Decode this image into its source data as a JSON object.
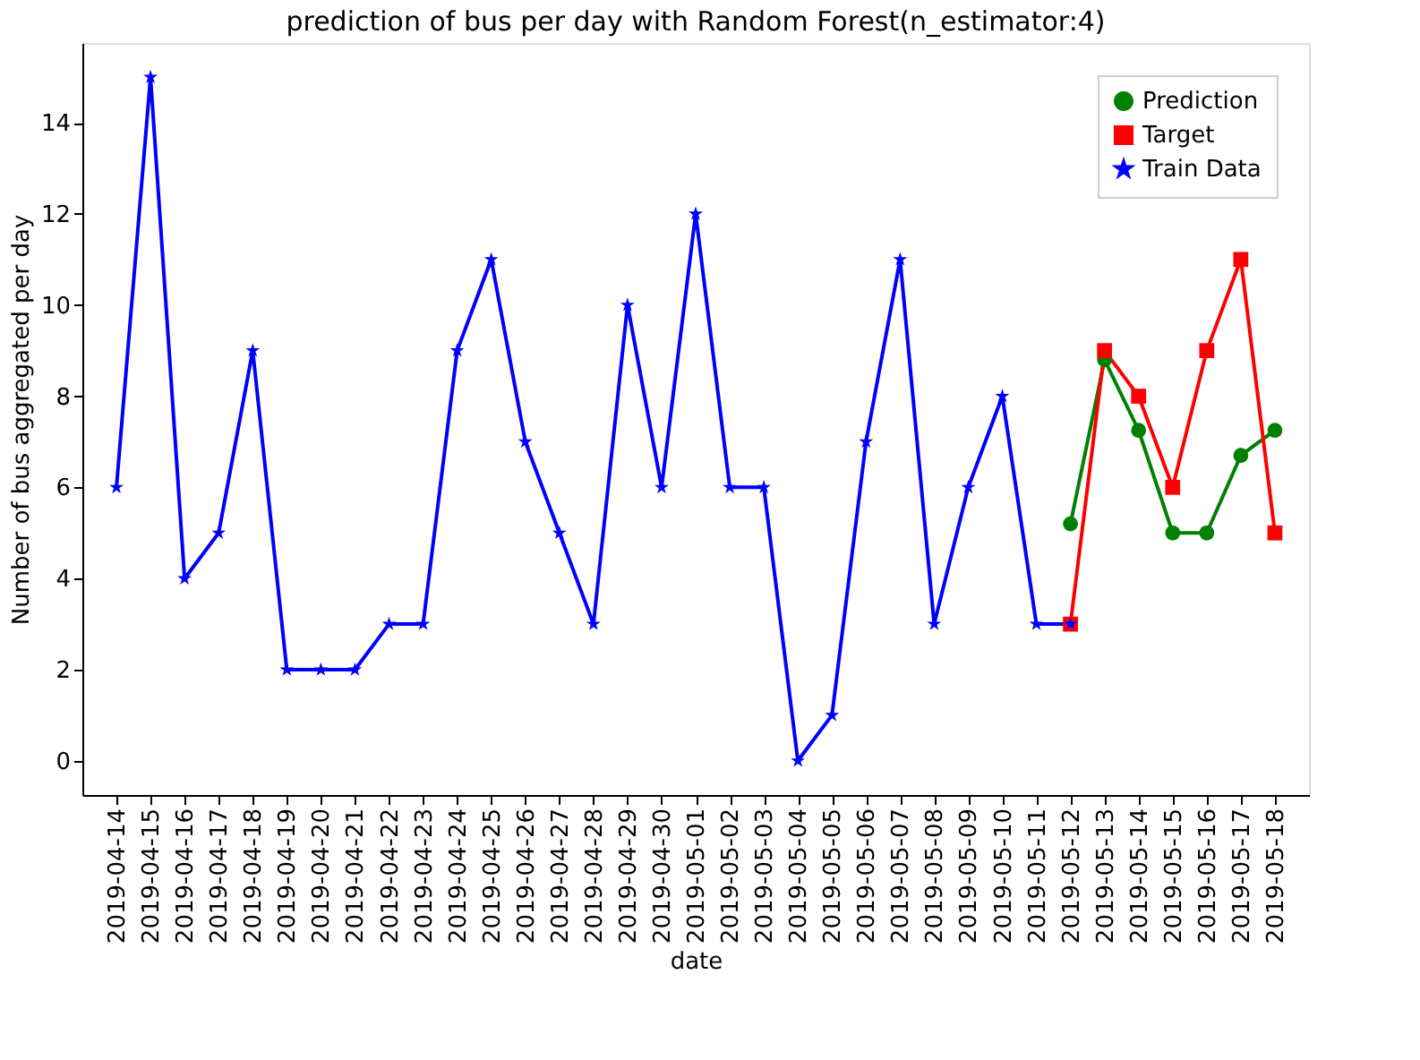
{
  "chart_data": {
    "type": "line",
    "title": "prediction of bus per day with Random Forest(n_estimator:4)",
    "xlabel": "date",
    "ylabel": "Number of bus aggregated per day",
    "categories": [
      "2019-04-14",
      "2019-04-15",
      "2019-04-16",
      "2019-04-17",
      "2019-04-18",
      "2019-04-19",
      "2019-04-20",
      "2019-04-21",
      "2019-04-22",
      "2019-04-23",
      "2019-04-24",
      "2019-04-25",
      "2019-04-26",
      "2019-04-27",
      "2019-04-28",
      "2019-04-29",
      "2019-04-30",
      "2019-05-01",
      "2019-05-02",
      "2019-05-03",
      "2019-05-04",
      "2019-05-05",
      "2019-05-06",
      "2019-05-07",
      "2019-05-08",
      "2019-05-09",
      "2019-05-10",
      "2019-05-11",
      "2019-05-12",
      "2019-05-13",
      "2019-05-14",
      "2019-05-15",
      "2019-05-16",
      "2019-05-17",
      "2019-05-18"
    ],
    "series": [
      {
        "name": "Prediction",
        "color": "#008000",
        "marker": "circle",
        "values": [
          null,
          null,
          null,
          null,
          null,
          null,
          null,
          null,
          null,
          null,
          null,
          null,
          null,
          null,
          null,
          null,
          null,
          null,
          null,
          null,
          null,
          null,
          null,
          null,
          null,
          null,
          null,
          null,
          5.2,
          8.8,
          7.25,
          5,
          5,
          6.7,
          7.25
        ]
      },
      {
        "name": "Target",
        "color": "#ff0000",
        "marker": "square",
        "values": [
          null,
          null,
          null,
          null,
          null,
          null,
          null,
          null,
          null,
          null,
          null,
          null,
          null,
          null,
          null,
          null,
          null,
          null,
          null,
          null,
          null,
          null,
          null,
          null,
          null,
          null,
          null,
          null,
          3,
          9,
          8,
          6,
          9,
          11,
          5
        ]
      },
      {
        "name": "Train Data",
        "color": "#0000ff",
        "marker": "star",
        "values": [
          6,
          15,
          4,
          5,
          9,
          2,
          2,
          2,
          3,
          3,
          9,
          11,
          7,
          5,
          3,
          10,
          6,
          12,
          6,
          6,
          0,
          1,
          7,
          11,
          3,
          6,
          8,
          3,
          3,
          null,
          null,
          null,
          null,
          null,
          null
        ]
      }
    ],
    "ylim": [
      -0.75,
      15.75
    ],
    "yticks": [
      0,
      2,
      4,
      6,
      8,
      10,
      12,
      14
    ],
    "grid": false,
    "legend": "top right",
    "line_style": "solid"
  }
}
